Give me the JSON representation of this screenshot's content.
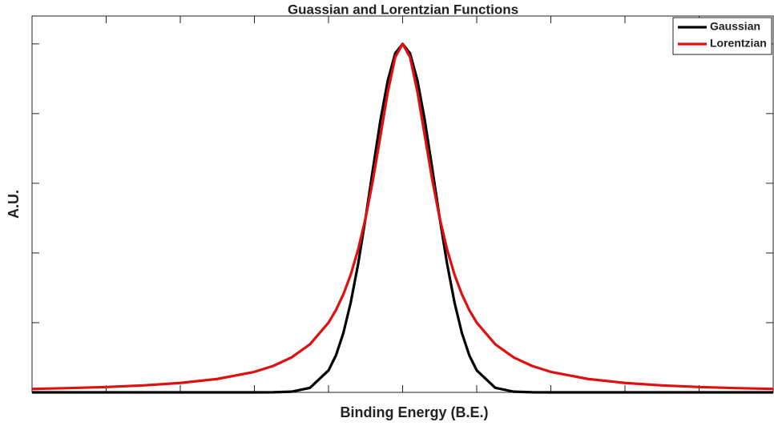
{
  "chart_data": {
    "type": "line",
    "title": "Guassian and Lorentzian Functions",
    "xlabel": "Binding Energy (B.E.)",
    "ylabel": "A.U.",
    "x": [
      -5,
      -4.5,
      -4,
      -3.5,
      -3,
      -2.5,
      -2,
      -1.75,
      -1.5,
      -1.25,
      -1,
      -0.9,
      -0.8,
      -0.7,
      -0.6,
      -0.5,
      -0.4,
      -0.3,
      -0.2,
      -0.1,
      0,
      0.1,
      0.2,
      0.3,
      0.4,
      0.5,
      0.6,
      0.7,
      0.8,
      0.9,
      1,
      1.25,
      1.5,
      1.75,
      2,
      2.5,
      3,
      3.5,
      4,
      4.5,
      5
    ],
    "series": [
      {
        "name": "Gaussian",
        "color": "#000000",
        "values": [
          0,
          0,
          0,
          0,
          0,
          0,
          0,
          0.0002,
          0.002,
          0.013,
          0.063,
          0.106,
          0.17,
          0.258,
          0.369,
          0.5,
          0.642,
          0.78,
          0.895,
          0.973,
          1,
          0.973,
          0.895,
          0.78,
          0.642,
          0.5,
          0.369,
          0.258,
          0.17,
          0.106,
          0.063,
          0.013,
          0.002,
          0.0002,
          0,
          0,
          0,
          0,
          0,
          0,
          0
        ]
      },
      {
        "name": "Lorentzian",
        "color": "#e01010",
        "values": [
          0.0099,
          0.0122,
          0.0154,
          0.02,
          0.027,
          0.0385,
          0.0588,
          0.0755,
          0.1,
          0.138,
          0.2,
          0.236,
          0.281,
          0.338,
          0.41,
          0.5,
          0.61,
          0.735,
          0.862,
          0.962,
          1,
          0.962,
          0.862,
          0.735,
          0.61,
          0.5,
          0.41,
          0.338,
          0.281,
          0.236,
          0.2,
          0.138,
          0.1,
          0.0755,
          0.0588,
          0.0385,
          0.027,
          0.02,
          0.0154,
          0.0122,
          0.0099
        ]
      }
    ],
    "xlim": [
      -5,
      5
    ],
    "ylim": [
      0,
      1.08
    ],
    "xticks": [
      -4,
      -3,
      -2,
      -1,
      0,
      1,
      2,
      3,
      4
    ],
    "yticks": [
      0.2,
      0.4,
      0.6,
      0.8,
      1
    ],
    "tick_labels": false,
    "grid": false,
    "legend": "top-right"
  }
}
